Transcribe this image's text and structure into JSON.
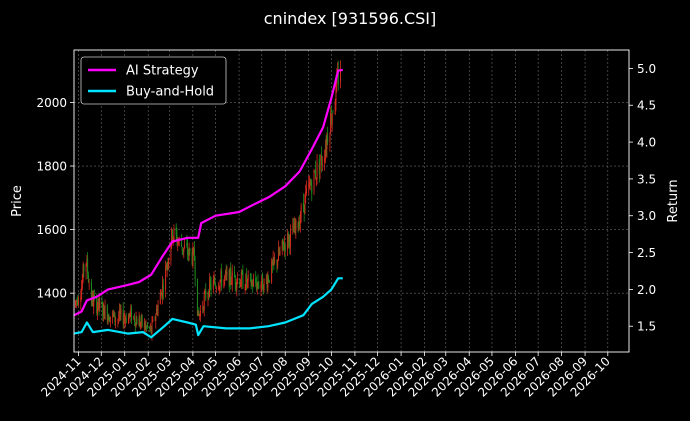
{
  "chart_data": {
    "type": "line",
    "title": "cnindex [931596.CSI]",
    "ylabel_left": "Price",
    "ylabel_right": "Return",
    "xlabel": "",
    "grid": true,
    "legend_position": "top-left",
    "x_ticks": [
      "2024-11",
      "2024-12",
      "2025-01",
      "2025-02",
      "2025-03",
      "2025-04",
      "2025-05",
      "2025-06",
      "2025-07",
      "2025-08",
      "2025-09",
      "2025-10",
      "2025-11",
      "2025-12",
      "2026-01",
      "2026-02",
      "2026-03",
      "2026-04",
      "2026-05",
      "2026-06",
      "2026-07",
      "2026-08",
      "2026-09",
      "2026-10"
    ],
    "xlim": [
      "2024-10-26",
      "2026-10-29"
    ],
    "ylim_left": [
      1215,
      2165
    ],
    "yticks_left": [
      1400,
      1600,
      1800,
      2000
    ],
    "ylim_right": [
      1.15,
      5.25
    ],
    "yticks_right": [
      "1.5",
      "2.0",
      "2.5",
      "3.0",
      "3.5",
      "4.0",
      "4.5",
      "5.0"
    ],
    "candlestick": {
      "name": "Price",
      "up_color": "#d42a1e",
      "down_color": "#1e8a1e",
      "anchors": [
        [
          "2024-10-26",
          1360
        ],
        [
          "2024-11-05",
          1420
        ],
        [
          "2024-11-10",
          1520
        ],
        [
          "2024-11-18",
          1380
        ],
        [
          "2024-12-01",
          1350
        ],
        [
          "2024-12-20",
          1320
        ],
        [
          "2025-01-10",
          1330
        ],
        [
          "2025-01-25",
          1300
        ],
        [
          "2025-02-05",
          1280
        ],
        [
          "2025-02-20",
          1420
        ],
        [
          "2025-03-05",
          1590
        ],
        [
          "2025-03-20",
          1540
        ],
        [
          "2025-04-03",
          1510
        ],
        [
          "2025-04-08",
          1320
        ],
        [
          "2025-04-20",
          1410
        ],
        [
          "2025-05-05",
          1440
        ],
        [
          "2025-05-25",
          1450
        ],
        [
          "2025-06-15",
          1430
        ],
        [
          "2025-07-05",
          1430
        ],
        [
          "2025-07-20",
          1500
        ],
        [
          "2025-08-01",
          1560
        ],
        [
          "2025-08-15",
          1600
        ],
        [
          "2025-08-28",
          1700
        ],
        [
          "2025-09-10",
          1780
        ],
        [
          "2025-09-20",
          1830
        ],
        [
          "2025-09-30",
          1950
        ],
        [
          "2025-10-08",
          2050
        ],
        [
          "2025-10-13",
          2120
        ]
      ]
    },
    "series": [
      {
        "name": "AI Strategy",
        "axis": "right",
        "color": "#ff00ff",
        "points": [
          [
            "2024-10-26",
            1.65
          ],
          [
            "2024-11-05",
            1.7
          ],
          [
            "2024-11-12",
            1.85
          ],
          [
            "2024-11-25",
            1.9
          ],
          [
            "2024-12-10",
            2.0
          ],
          [
            "2025-01-01",
            2.05
          ],
          [
            "2025-01-20",
            2.1
          ],
          [
            "2025-02-05",
            2.2
          ],
          [
            "2025-02-20",
            2.45
          ],
          [
            "2025-03-05",
            2.65
          ],
          [
            "2025-03-25",
            2.7
          ],
          [
            "2025-04-08",
            2.7
          ],
          [
            "2025-04-12",
            2.9
          ],
          [
            "2025-05-01",
            3.0
          ],
          [
            "2025-06-01",
            3.05
          ],
          [
            "2025-06-20",
            3.15
          ],
          [
            "2025-07-10",
            3.25
          ],
          [
            "2025-08-01",
            3.4
          ],
          [
            "2025-08-20",
            3.6
          ],
          [
            "2025-09-05",
            3.9
          ],
          [
            "2025-09-20",
            4.2
          ],
          [
            "2025-10-01",
            4.6
          ],
          [
            "2025-10-10",
            4.97
          ],
          [
            "2025-10-16",
            4.98
          ]
        ]
      },
      {
        "name": "Buy-and-Hold",
        "axis": "right",
        "color": "#00e5ff",
        "points": [
          [
            "2024-10-26",
            1.4
          ],
          [
            "2024-11-05",
            1.42
          ],
          [
            "2024-11-12",
            1.55
          ],
          [
            "2024-11-20",
            1.42
          ],
          [
            "2024-12-10",
            1.45
          ],
          [
            "2025-01-05",
            1.4
          ],
          [
            "2025-01-25",
            1.42
          ],
          [
            "2025-02-05",
            1.35
          ],
          [
            "2025-02-20",
            1.48
          ],
          [
            "2025-03-05",
            1.6
          ],
          [
            "2025-03-25",
            1.55
          ],
          [
            "2025-04-05",
            1.52
          ],
          [
            "2025-04-08",
            1.38
          ],
          [
            "2025-04-15",
            1.5
          ],
          [
            "2025-05-15",
            1.47
          ],
          [
            "2025-06-15",
            1.47
          ],
          [
            "2025-07-10",
            1.5
          ],
          [
            "2025-08-01",
            1.55
          ],
          [
            "2025-08-25",
            1.65
          ],
          [
            "2025-09-05",
            1.8
          ],
          [
            "2025-09-20",
            1.9
          ],
          [
            "2025-10-01",
            2.0
          ],
          [
            "2025-10-10",
            2.15
          ],
          [
            "2025-10-16",
            2.15
          ]
        ]
      }
    ]
  }
}
